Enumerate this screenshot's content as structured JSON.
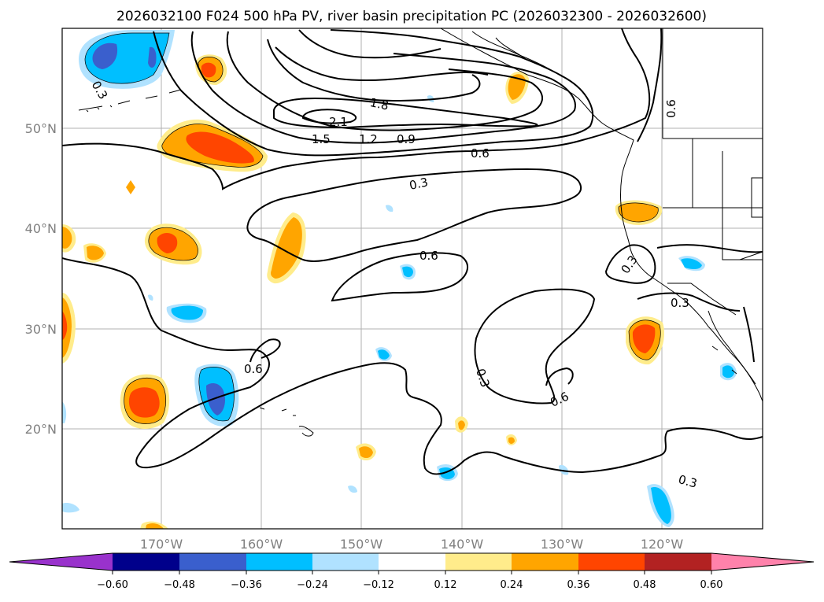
{
  "title": "2026032100 F024 500 hPa PV, river basin precipitation PC (2026032300 - 2026032600)",
  "map": {
    "lon_ticks": [
      "170°W",
      "160°W",
      "150°W",
      "140°W",
      "130°W",
      "120°W"
    ],
    "lat_ticks": [
      "50°N",
      "40°N",
      "30°N",
      "20°N"
    ],
    "contour_labels": [
      "2.1",
      "1.8",
      "1.5",
      "1.2",
      "0.9",
      "0.6",
      "0.3",
      "0.6",
      "0.6",
      "0.3",
      "0.6",
      "0.3",
      "0.3",
      "0.3",
      "0.6",
      "0.3"
    ]
  },
  "colorbar": {
    "colors": [
      "#9932cc",
      "#00008b",
      "#3a5fcd",
      "#00bfff",
      "#b0e2ff",
      "#ffffff",
      "#ffec8b",
      "#ffa500",
      "#ff4500",
      "#b22222",
      "#ff82ab"
    ],
    "labels": [
      "−0.60",
      "−0.48",
      "−0.36",
      "−0.24",
      "−0.12",
      "0.12",
      "0.24",
      "0.36",
      "0.48",
      "0.60"
    ]
  }
}
